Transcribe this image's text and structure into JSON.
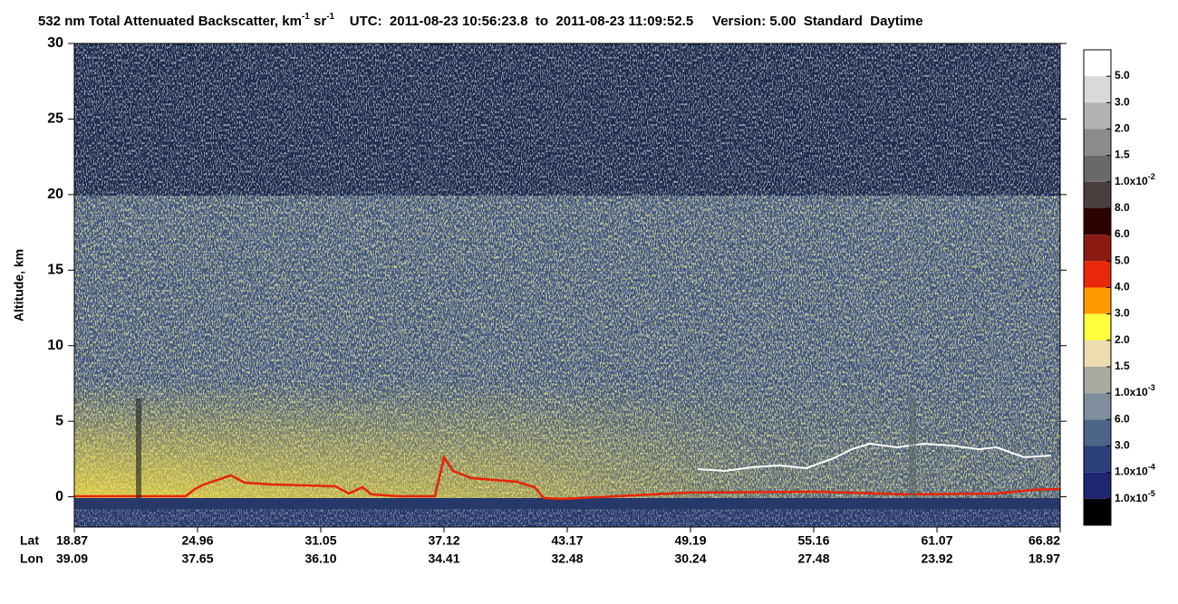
{
  "chart_data": {
    "type": "curtain",
    "title": [
      "532 nm Total Attenuated Backscatter, km",
      "-1",
      " sr",
      "-1",
      "    UTC:  2011-08-23 10:56:23.8  to  2011-08-23 11:09:52.5     Version: 5.00  Standard  Daytime"
    ],
    "y_label": "Altitude, km",
    "ylim": [
      -2,
      30
    ],
    "yticks": [
      0,
      5,
      10,
      15,
      20,
      25,
      30
    ],
    "x_row_labels": [
      "Lat",
      "Lon"
    ],
    "x_labels": [
      [
        "18.87",
        "39.09"
      ],
      [
        "24.96",
        "37.65"
      ],
      [
        "31.05",
        "36.10"
      ],
      [
        "37.12",
        "34.41"
      ],
      [
        "43.17",
        "32.48"
      ],
      [
        "49.19",
        "30.24"
      ],
      [
        "55.16",
        "27.48"
      ],
      [
        "61.07",
        "23.92"
      ],
      [
        "66.82",
        "18.97"
      ]
    ],
    "colorbar": {
      "colors": [
        "#ffffff",
        "#d9d9d9",
        "#b2b2b2",
        "#8c8c8c",
        "#696969",
        "#4a3f3c",
        "#2e0200",
        "#8c1a12",
        "#e9280b",
        "#ff9a00",
        "#ffff3c",
        "#ecdcb0",
        "#a9aaa2",
        "#7e8e9c",
        "#4c6588",
        "#2c407a",
        "#1e2672",
        "#000000"
      ],
      "labels": [
        [
          "5.0"
        ],
        [
          "3.0"
        ],
        [
          "2.0"
        ],
        [
          "1.5"
        ],
        [
          "1.0x10",
          "-2"
        ],
        [
          "8.0"
        ],
        [
          "6.0"
        ],
        [
          "5.0"
        ],
        [
          "4.0"
        ],
        [
          "3.0"
        ],
        [
          "2.0"
        ],
        [
          "1.5"
        ],
        [
          "1.0x10",
          "-3"
        ],
        [
          "6.0"
        ],
        [
          "3.0"
        ],
        [
          "1.0x10",
          "-4"
        ],
        [
          "1.0x10",
          "-5"
        ]
      ]
    }
  }
}
